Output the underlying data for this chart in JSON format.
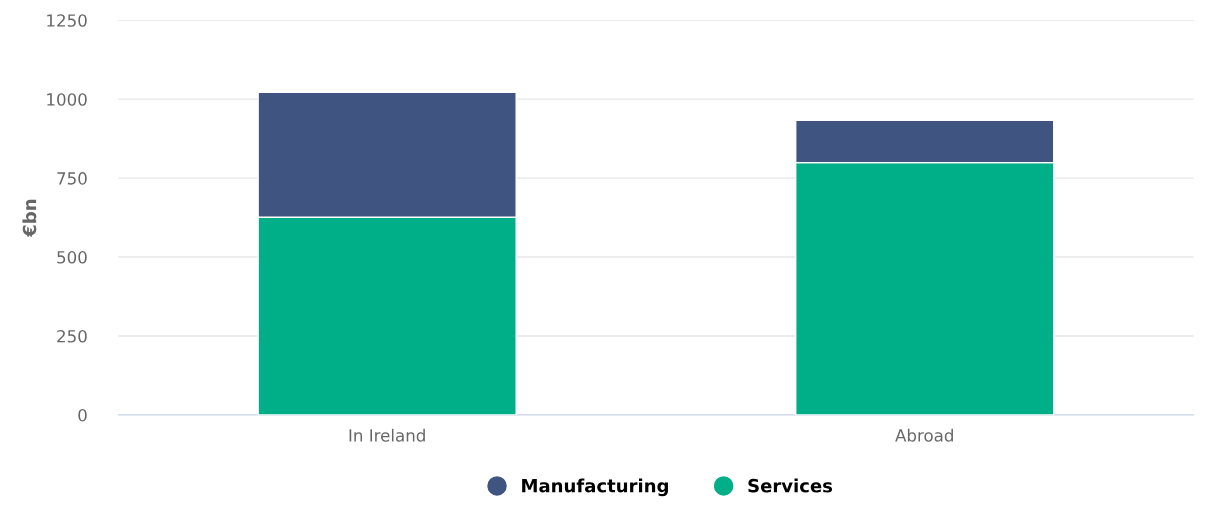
{
  "chart_data": {
    "type": "bar",
    "stacked": true,
    "ylabel": "€bn",
    "categories": [
      "In Ireland",
      "Abroad"
    ],
    "series": [
      {
        "name": "Services",
        "color": "#00ae87",
        "values": [
          626,
          799
        ]
      },
      {
        "name": "Manufacturing",
        "color": "#3f5480",
        "values": [
          396,
          134
        ]
      }
    ],
    "ylim": [
      0,
      1250
    ],
    "yticks": [
      0,
      250,
      500,
      750,
      1000,
      1250
    ],
    "grid": "y",
    "legend": "bottom"
  }
}
